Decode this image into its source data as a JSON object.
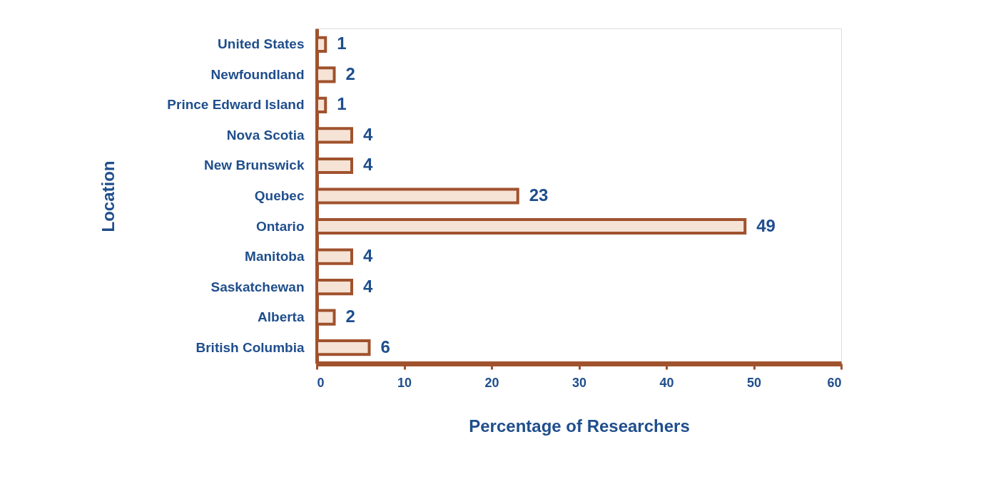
{
  "chart_data": {
    "type": "bar",
    "orientation": "horizontal",
    "xlabel": "Percentage of Researchers",
    "ylabel": "Location",
    "categories": [
      "United States",
      "Newfoundland",
      "Prince Edward Island",
      "Nova Scotia",
      "New Brunswick",
      "Quebec",
      "Ontario",
      "Manitoba",
      "Saskatchewan",
      "Alberta",
      "British Columbia"
    ],
    "values": [
      1,
      2,
      1,
      4,
      4,
      23,
      49,
      4,
      4,
      2,
      6
    ],
    "color": "#f5e3d6",
    "xlim": [
      0,
      60
    ],
    "xticks": [
      0,
      10,
      20,
      30,
      40,
      50,
      60
    ],
    "data_labels": true,
    "grid": false
  }
}
